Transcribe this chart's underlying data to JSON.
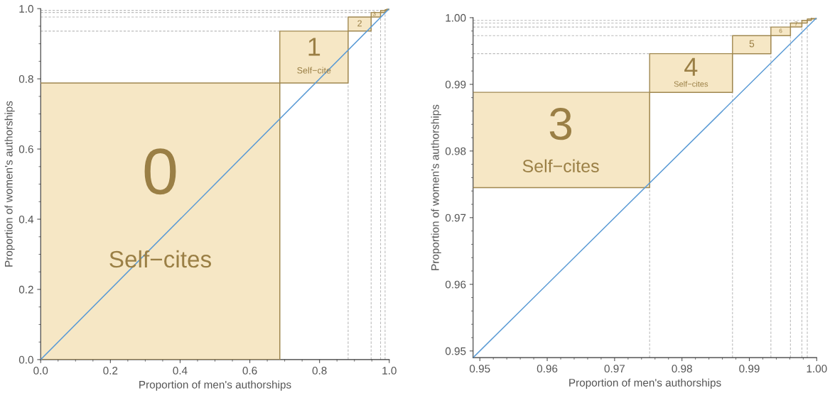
{
  "chart_data": [
    {
      "type": "line",
      "xlabel": "Proportion of men's authorships",
      "ylabel": "Proportion of women's authorships",
      "xlim": [
        0,
        1
      ],
      "ylim": [
        0,
        1
      ],
      "xticks": [
        {
          "value": 0,
          "label": "0.0"
        },
        {
          "value": 0.2,
          "label": "0.2"
        },
        {
          "value": 0.4,
          "label": "0.4"
        },
        {
          "value": 0.6,
          "label": "0.6"
        },
        {
          "value": 0.8,
          "label": "0.8"
        },
        {
          "value": 1,
          "label": "1.0"
        }
      ],
      "yticks": [
        {
          "value": 0,
          "label": "0.0"
        },
        {
          "value": 0.2,
          "label": "0.2"
        },
        {
          "value": 0.4,
          "label": "0.4"
        },
        {
          "value": 0.6,
          "label": "0.6"
        },
        {
          "value": 0.8,
          "label": "0.8"
        },
        {
          "value": 1,
          "label": "1.0"
        }
      ],
      "grid": false,
      "line_style": "solid",
      "series": [
        {
          "color": "#a08850",
          "x": [
            0,
            0.686,
            0.686,
            0.882,
            0.882,
            0.948,
            0.948,
            0.975,
            0.975,
            0.988,
            0.988,
            0.993,
            0.993,
            1
          ],
          "values": [
            0.788,
            0.788,
            0.936,
            0.936,
            0.976,
            0.976,
            0.989,
            0.989,
            0.995,
            0.995,
            0.997,
            0.997,
            1,
            1
          ],
          "lower": [
            0,
            0,
            0.788,
            0.788,
            0.936,
            0.936,
            0.976,
            0.976,
            0.989,
            0.989,
            0.995,
            0.995,
            0.997,
            0.997
          ],
          "upper": [
            0.788,
            0.788,
            0.936,
            0.936,
            0.976,
            0.976,
            0.989,
            0.989,
            0.995,
            0.995,
            0.997,
            0.997,
            1,
            1
          ]
        },
        {
          "type": "line",
          "color": "#a08850",
          "x": [
            0,
            0.686,
            0.686,
            0.882,
            0.882,
            0.948,
            0.948,
            0.975,
            0.975,
            0.988,
            0.988,
            0.993,
            0.993,
            1
          ],
          "values": [
            0,
            0,
            0.788,
            0.788,
            0.936,
            0.936,
            0.976,
            0.976,
            0.989,
            0.989,
            0.995,
            0.995,
            0.997,
            0.997
          ]
        },
        {
          "type": "line",
          "color": "#5b9bd5",
          "x": [
            0,
            1
          ],
          "values": [
            0,
            1
          ]
        }
      ],
      "ref_lines": [
        {
          "axis": "y",
          "value": 0.936,
          "color": "#bbbbbb",
          "line_style": "dashed"
        },
        {
          "axis": "y",
          "value": 0.976,
          "color": "#bbbbbb",
          "line_style": "dashed"
        },
        {
          "axis": "y",
          "value": 0.989,
          "color": "#bbbbbb",
          "line_style": "dashed"
        },
        {
          "axis": "y",
          "value": 0.995,
          "color": "#bbbbbb",
          "line_style": "dashed"
        },
        {
          "axis": "x",
          "value": 0.882,
          "color": "#bbbbbb",
          "line_style": "dashed"
        },
        {
          "axis": "x",
          "value": 0.948,
          "color": "#bbbbbb",
          "line_style": "dashed"
        },
        {
          "axis": "x",
          "value": 0.975,
          "color": "#bbbbbb",
          "line_style": "dashed"
        },
        {
          "axis": "x",
          "value": 0.988,
          "color": "#bbbbbb",
          "line_style": "dashed"
        }
      ],
      "annotations": [
        "0",
        "Self−cites",
        "1",
        "Self−cite",
        "2",
        "3"
      ]
    },
    {
      "type": "line",
      "xlabel": "Proportion of men's authorships",
      "ylabel": "Proportion of women's authorships",
      "xlim": [
        0.949,
        1
      ],
      "ylim": [
        0.949,
        1
      ],
      "xticks": [
        {
          "value": 0.95,
          "label": "0.95"
        },
        {
          "value": 0.96,
          "label": "0.96"
        },
        {
          "value": 0.97,
          "label": "0.97"
        },
        {
          "value": 0.98,
          "label": "0.98"
        },
        {
          "value": 0.99,
          "label": "0.99"
        },
        {
          "value": 1,
          "label": "1.00"
        }
      ],
      "yticks": [
        {
          "value": 0.95,
          "label": "0.95"
        },
        {
          "value": 0.96,
          "label": "0.96"
        },
        {
          "value": 0.97,
          "label": "0.97"
        },
        {
          "value": 0.98,
          "label": "0.98"
        },
        {
          "value": 0.99,
          "label": "0.99"
        },
        {
          "value": 1,
          "label": "1.00"
        }
      ],
      "grid": false,
      "line_style": "solid",
      "series": [
        {
          "color": "#a08850",
          "x": [
            0.949,
            0.9752,
            0.9752,
            0.9875,
            0.9875,
            0.9932,
            0.9932,
            0.9961,
            0.9961,
            0.9978,
            0.9978,
            0.9986,
            0.9986,
            0.9992,
            0.9992,
            1
          ],
          "values": [
            0.9888,
            0.9888,
            0.9946,
            0.9946,
            0.9973,
            0.9973,
            0.9986,
            0.9986,
            0.9992,
            0.9992,
            0.9996,
            0.9996,
            0.9998,
            0.9998,
            1,
            1
          ],
          "lower": [
            0.9745,
            0.9745,
            0.9888,
            0.9888,
            0.9946,
            0.9946,
            0.9973,
            0.9973,
            0.9986,
            0.9986,
            0.9992,
            0.9992,
            0.9996,
            0.9996,
            0.9998,
            0.9998
          ],
          "upper": [
            0.9888,
            0.9888,
            0.9946,
            0.9946,
            0.9973,
            0.9973,
            0.9986,
            0.9986,
            0.9992,
            0.9992,
            0.9996,
            0.9996,
            0.9998,
            0.9998,
            1,
            1
          ]
        },
        {
          "type": "line",
          "color": "#a08850",
          "x": [
            0.949,
            0.9752,
            0.9752,
            0.9875,
            0.9875,
            0.9932,
            0.9932,
            0.9961,
            0.9961,
            0.9978,
            0.9978,
            0.9986,
            0.9986,
            0.9992,
            0.9992,
            1
          ],
          "values": [
            0.9745,
            0.9745,
            0.9888,
            0.9888,
            0.9946,
            0.9946,
            0.9973,
            0.9973,
            0.9986,
            0.9986,
            0.9992,
            0.9992,
            0.9996,
            0.9996,
            0.9998,
            0.9998
          ]
        },
        {
          "type": "line",
          "color": "#5b9bd5",
          "x": [
            0.949,
            1
          ],
          "values": [
            0.949,
            1
          ]
        }
      ],
      "ref_lines": [
        {
          "axis": "y",
          "value": 0.9946,
          "color": "#bbbbbb",
          "line_style": "dashed"
        },
        {
          "axis": "y",
          "value": 0.9973,
          "color": "#bbbbbb",
          "line_style": "dashed"
        },
        {
          "axis": "y",
          "value": 0.9986,
          "color": "#bbbbbb",
          "line_style": "dashed"
        },
        {
          "axis": "y",
          "value": 0.9992,
          "color": "#bbbbbb",
          "line_style": "dashed"
        },
        {
          "axis": "y",
          "value": 0.9996,
          "color": "#bbbbbb",
          "line_style": "dashed"
        },
        {
          "axis": "x",
          "value": 0.9752,
          "color": "#bbbbbb",
          "line_style": "dashed"
        },
        {
          "axis": "x",
          "value": 0.9875,
          "color": "#bbbbbb",
          "line_style": "dashed"
        },
        {
          "axis": "x",
          "value": 0.9932,
          "color": "#bbbbbb",
          "line_style": "dashed"
        },
        {
          "axis": "x",
          "value": 0.9961,
          "color": "#bbbbbb",
          "line_style": "dashed"
        },
        {
          "axis": "x",
          "value": 0.9978,
          "color": "#bbbbbb",
          "line_style": "dashed"
        },
        {
          "axis": "x",
          "value": 0.9986,
          "color": "#bbbbbb",
          "line_style": "dashed"
        }
      ],
      "annotations": [
        "3",
        "Self−cites",
        "4",
        "Self−cites",
        "5",
        "6",
        "7"
      ]
    }
  ]
}
